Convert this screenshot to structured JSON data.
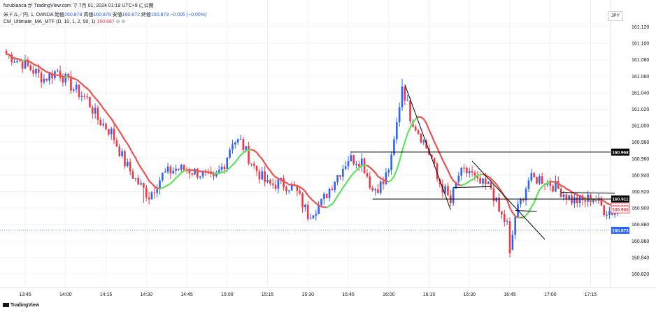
{
  "header": {
    "publish_line": "furubianca が TradingView.com で 7月 01, 2024 01:19 UTC+9 に公開",
    "symbol": "米ドル／円, 1, OANDA",
    "open_label": "始値",
    "open_value": "160.878",
    "high_label": "高値",
    "high_value": "160.878",
    "low_label": "安値",
    "low_value": "160.872",
    "close_label": "終値",
    "close_value": "160.873",
    "change": "−0.005 (−0.00%)",
    "indicator_name": "CM_Ultimate_MA_MTF (D, 10, 1, 2, 50, 1)",
    "indicator_value": "160.887",
    "indicator_icons": "⊘ ⊘"
  },
  "currency_label": "JPY",
  "footer_brand": "TradingView",
  "colors": {
    "bull": "#2962ff",
    "bear": "#f23645",
    "ma_down": "#ef5350",
    "ma_up": "#5ee45e",
    "line": "#000000",
    "grid": "#f0f3fa",
    "last_price": "#2962ff"
  },
  "chart_data": {
    "type": "candlestick",
    "y_axis": {
      "ticks": [
        "161.120",
        "161.100",
        "161.080",
        "161.060",
        "161.040",
        "161.020",
        "161.000",
        "160.980",
        "160.960",
        "160.940",
        "160.920",
        "160.900",
        "160.880",
        "160.860",
        "160.840",
        "160.820"
      ],
      "range": [
        160.813,
        161.135
      ]
    },
    "x_axis": {
      "ticks": [
        "13:45",
        "14:00",
        "14:15",
        "14:30",
        "14:45",
        "15:00",
        "15:15",
        "15:30",
        "15:45",
        "16:00",
        "16:15",
        "16:30",
        "16:45",
        "17:00",
        "17:15"
      ]
    },
    "price_labels": [
      {
        "value": "160.968",
        "style": "black"
      },
      {
        "value": "160.911",
        "style": "black"
      },
      {
        "value": "160.901",
        "style": "red-outline"
      },
      {
        "value": "160.900",
        "style": "red-outline"
      },
      {
        "value": "160.873",
        "style": "blue"
      }
    ],
    "horizontal_lines": [
      {
        "price": 160.968,
        "from": "15:46",
        "to": "end"
      },
      {
        "price": 160.911,
        "from": "15:54",
        "to": "17:23"
      }
    ],
    "trend_lines": [
      {
        "from": [
          "16:06",
          161.05
        ],
        "to": [
          "16:23",
          160.898
        ]
      },
      {
        "from": [
          "16:24",
          160.925
        ],
        "to": [
          "16:38",
          160.926
        ]
      },
      {
        "from": [
          "16:31",
          160.957
        ],
        "to": [
          "16:58",
          160.862
        ]
      },
      {
        "from": [
          "16:47",
          160.897
        ],
        "to": [
          "16:55",
          160.896
        ]
      },
      {
        "from": [
          "17:04",
          160.919
        ],
        "to": [
          "17:24",
          160.918
        ]
      }
    ],
    "series": [
      {
        "name": "米ドル／円",
        "kind": "candles",
        "note": "1-minute OHLC, ~13:38–17:26",
        "anchors": [
          [
            "13:38",
            161.087
          ],
          [
            "13:45",
            161.074
          ],
          [
            "13:52",
            161.057
          ],
          [
            "13:57",
            161.067
          ],
          [
            "14:03",
            161.045
          ],
          [
            "14:08",
            161.032
          ],
          [
            "14:12",
            161.008
          ],
          [
            "14:17",
            160.992
          ],
          [
            "14:22",
            160.955
          ],
          [
            "14:27",
            160.93
          ],
          [
            "14:31",
            160.915
          ],
          [
            "14:36",
            160.94
          ],
          [
            "14:41",
            160.948
          ],
          [
            "14:46",
            160.946
          ],
          [
            "14:51",
            160.941
          ],
          [
            "14:55",
            160.933
          ],
          [
            "14:59",
            160.955
          ],
          [
            "15:02",
            160.982
          ],
          [
            "15:05",
            160.98
          ],
          [
            "15:10",
            160.95
          ],
          [
            "15:15",
            160.928
          ],
          [
            "15:20",
            160.93
          ],
          [
            "15:25",
            160.925
          ],
          [
            "15:30",
            160.892
          ],
          [
            "15:35",
            160.906
          ],
          [
            "15:40",
            160.935
          ],
          [
            "15:45",
            160.96
          ],
          [
            "15:50",
            160.958
          ],
          [
            "15:54",
            160.922
          ],
          [
            "15:58",
            160.93
          ],
          [
            "16:01",
            160.958
          ],
          [
            "16:03",
            161.002
          ],
          [
            "16:05",
            161.05
          ],
          [
            "16:08",
            161.012
          ],
          [
            "16:12",
            160.987
          ],
          [
            "16:16",
            160.96
          ],
          [
            "16:18",
            160.935
          ],
          [
            "16:21",
            160.92
          ],
          [
            "16:23",
            160.906
          ],
          [
            "16:26",
            160.94
          ],
          [
            "16:30",
            160.945
          ],
          [
            "16:33",
            160.93
          ],
          [
            "16:38",
            160.925
          ],
          [
            "16:41",
            160.895
          ],
          [
            "16:44",
            160.88
          ],
          [
            "16:45",
            160.845
          ],
          [
            "16:47",
            160.89
          ],
          [
            "16:52",
            160.934
          ],
          [
            "16:56",
            160.936
          ],
          [
            "17:00",
            160.93
          ],
          [
            "17:04",
            160.921
          ],
          [
            "17:08",
            160.91
          ],
          [
            "17:12",
            160.908
          ],
          [
            "17:16",
            160.914
          ],
          [
            "17:20",
            160.898
          ],
          [
            "17:24",
            160.895
          ],
          [
            "17:26",
            160.901
          ]
        ]
      },
      {
        "name": "CM_Ultimate_MA_MTF",
        "kind": "ma",
        "period": 10
      }
    ]
  }
}
